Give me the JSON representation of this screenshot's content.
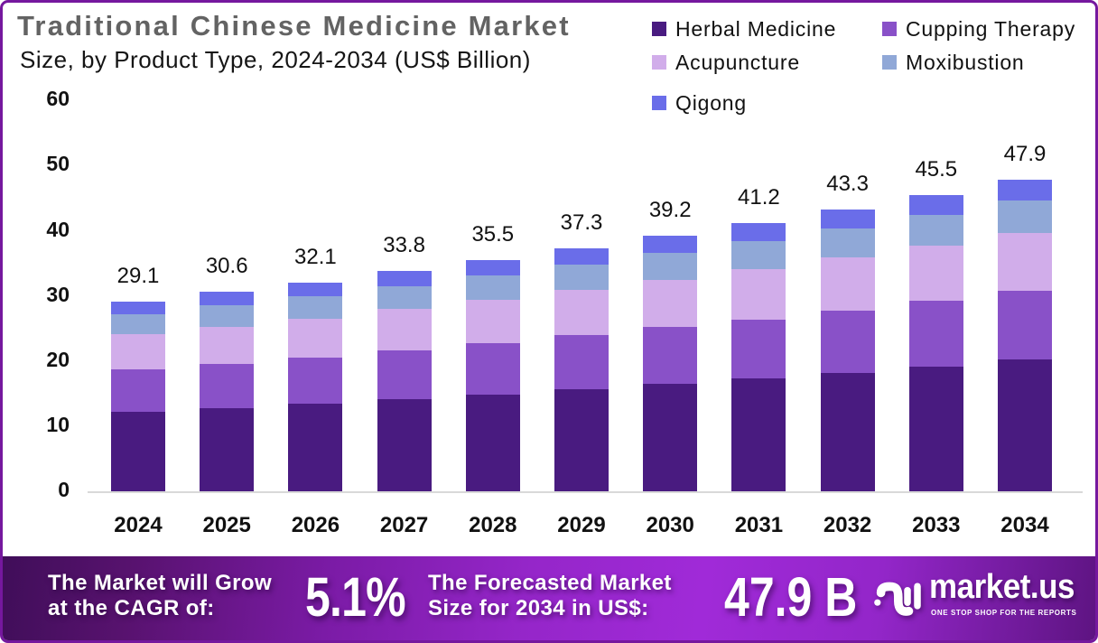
{
  "header": {
    "title": "Traditional Chinese Medicine Market",
    "subtitle": "Size, by Product Type, 2024-2034 (US$ Billion)"
  },
  "chart_data": {
    "type": "bar",
    "stacked": true,
    "title": "Traditional Chinese Medicine Market Size, by Product Type, 2024-2034 (US$ Billion)",
    "categories": [
      "2024",
      "2025",
      "2026",
      "2027",
      "2028",
      "2029",
      "2030",
      "2031",
      "2032",
      "2033",
      "2034"
    ],
    "series": [
      {
        "name": "Herbal Medicine",
        "color": "#491b80",
        "values": [
          12.2,
          12.8,
          13.4,
          14.2,
          14.9,
          15.7,
          16.5,
          17.3,
          18.2,
          19.1,
          20.2
        ]
      },
      {
        "name": "Cupping Therapy",
        "color": "#8951c8",
        "values": [
          6.5,
          6.8,
          7.1,
          7.5,
          7.9,
          8.3,
          8.7,
          9.1,
          9.6,
          10.1,
          10.6
        ]
      },
      {
        "name": "Acupuncture",
        "color": "#d1adea",
        "values": [
          5.4,
          5.7,
          6.0,
          6.3,
          6.6,
          6.9,
          7.3,
          7.7,
          8.1,
          8.5,
          8.9
        ]
      },
      {
        "name": "Moxibustion",
        "color": "#90a8d7",
        "values": [
          3.1,
          3.2,
          3.4,
          3.5,
          3.7,
          3.9,
          4.1,
          4.3,
          4.5,
          4.8,
          5.0
        ]
      },
      {
        "name": "Qigong",
        "color": "#6a6de9",
        "values": [
          1.9,
          2.1,
          2.2,
          2.3,
          2.4,
          2.5,
          2.6,
          2.8,
          2.9,
          3.0,
          3.2
        ]
      }
    ],
    "totals": [
      29.1,
      30.6,
      32.1,
      33.8,
      35.5,
      37.3,
      39.2,
      41.2,
      43.3,
      45.5,
      47.9
    ],
    "xlabel": "",
    "ylabel": "",
    "ylim": [
      0,
      60
    ],
    "yticks": [
      0,
      10,
      20,
      30,
      40,
      50,
      60
    ],
    "grid": false,
    "legend_position": "top-right"
  },
  "banner": {
    "cagr_label_line1": "The Market will Grow",
    "cagr_label_line2": "at the CAGR of:",
    "cagr_value": "5.1%",
    "forecast_label_line1": "The Forecasted Market",
    "forecast_label_line2": "Size for 2034 in US$:",
    "forecast_value": "47.9 B",
    "brand_name": "market.us",
    "brand_tagline": "ONE STOP SHOP FOR THE REPORTS"
  },
  "colors": {
    "border": "#75189e",
    "title": "#636363",
    "axis_line": "#d9d9d9",
    "banner_gradient_left": "#451060",
    "banner_gradient_mid": "#9f29d7",
    "banner_gradient_right": "#611683",
    "text": "#111111"
  }
}
